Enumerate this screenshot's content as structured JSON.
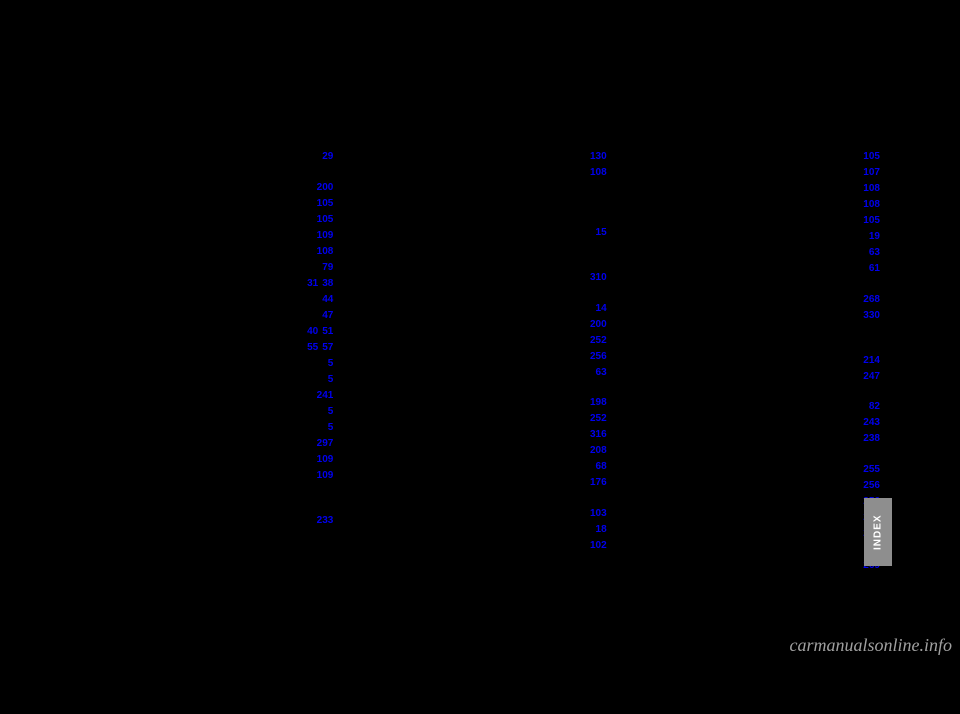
{
  "watermark": "carmanualsonline.info",
  "index_tab": "INDEX",
  "columns": [
    {
      "entries": [
        {
          "label": "",
          "pages": [
            "29"
          ]
        },
        {
          "label": "",
          "pages": []
        },
        {
          "label": "",
          "pages": [
            "200"
          ]
        },
        {
          "label": "",
          "pages": [
            "105"
          ]
        },
        {
          "label": "",
          "pages": [
            "105"
          ]
        },
        {
          "label": "",
          "pages": [
            "109"
          ]
        },
        {
          "label": "",
          "pages": [
            "108"
          ]
        },
        {
          "label": "",
          "pages": [
            "79"
          ]
        },
        {
          "label": "",
          "pages": [
            "31",
            "38"
          ]
        },
        {
          "label": "",
          "pages": [
            "44"
          ]
        },
        {
          "label": "",
          "pages": [
            "47"
          ]
        },
        {
          "label": "",
          "pages": [
            "40",
            "51"
          ]
        },
        {
          "label": "",
          "pages": [
            "55",
            "57"
          ]
        },
        {
          "label": "",
          "pages": [
            "5"
          ]
        },
        {
          "label": "",
          "pages": [
            "5"
          ]
        },
        {
          "label": "",
          "pages": [
            "241"
          ]
        },
        {
          "label": "",
          "pages": [
            "5"
          ]
        },
        {
          "label": "",
          "pages": [
            "5"
          ]
        },
        {
          "label": "",
          "pages": [
            "297"
          ]
        },
        {
          "label": "",
          "pages": [
            "109"
          ]
        },
        {
          "label": "",
          "pages": [
            "109"
          ]
        },
        {
          "label": "",
          "pages": []
        },
        {
          "label": "",
          "pages": []
        },
        {
          "label": "",
          "pages": [
            "233"
          ]
        }
      ]
    },
    {
      "entries": [
        {
          "label": "",
          "pages": [
            "130"
          ]
        },
        {
          "label": "",
          "pages": [
            "108"
          ]
        },
        {
          "label": "",
          "pages": []
        },
        {
          "label": "",
          "pages": []
        },
        {
          "label": "",
          "pages": []
        },
        {
          "label": "",
          "pages": [
            "15"
          ]
        },
        {
          "label": "",
          "pages": []
        },
        {
          "label": "",
          "pages": []
        },
        {
          "label": "",
          "pages": [
            "310"
          ]
        },
        {
          "label": "",
          "pages": []
        },
        {
          "label": "",
          "pages": [
            "14"
          ]
        },
        {
          "label": "",
          "pages": [
            "200"
          ]
        },
        {
          "label": "",
          "pages": [
            "252"
          ]
        },
        {
          "label": "",
          "pages": [
            "256"
          ]
        },
        {
          "label": "",
          "pages": [
            "63"
          ]
        },
        {
          "label": "",
          "pages": []
        },
        {
          "label": "",
          "pages": [
            "198"
          ]
        },
        {
          "label": "",
          "pages": [
            "252"
          ]
        },
        {
          "label": "",
          "pages": [
            "316"
          ]
        },
        {
          "label": "",
          "pages": [
            "208"
          ]
        },
        {
          "label": "",
          "pages": [
            "68"
          ]
        },
        {
          "label": "",
          "pages": [
            "176"
          ]
        },
        {
          "label": "",
          "pages": []
        },
        {
          "label": "",
          "pages": [
            "103"
          ]
        },
        {
          "label": "",
          "pages": [
            "18"
          ]
        },
        {
          "label": "",
          "pages": [
            "102"
          ]
        }
      ]
    },
    {
      "entries": [
        {
          "label": "",
          "pages": [
            "105"
          ]
        },
        {
          "label": "",
          "pages": [
            "107"
          ]
        },
        {
          "label": "",
          "pages": [
            "108"
          ]
        },
        {
          "label": "",
          "pages": [
            "108"
          ]
        },
        {
          "label": "",
          "pages": [
            "105"
          ]
        },
        {
          "label": "",
          "pages": [
            "19"
          ]
        },
        {
          "label": "",
          "pages": [
            "63"
          ]
        },
        {
          "label": "",
          "pages": [
            "61"
          ]
        },
        {
          "label": "",
          "pages": []
        },
        {
          "label": "",
          "pages": [
            "268"
          ]
        },
        {
          "label": "",
          "pages": [
            "330"
          ]
        },
        {
          "label": "",
          "pages": []
        },
        {
          "label": "",
          "pages": []
        },
        {
          "label": "",
          "pages": [
            "214"
          ]
        },
        {
          "label": "",
          "pages": [
            "247"
          ]
        },
        {
          "label": "",
          "pages": []
        },
        {
          "label": "",
          "pages": [
            "82"
          ]
        },
        {
          "label": "",
          "pages": [
            "243"
          ]
        },
        {
          "label": "",
          "pages": [
            "238"
          ]
        },
        {
          "label": "",
          "pages": []
        },
        {
          "label": "",
          "pages": [
            "255"
          ]
        },
        {
          "label": "",
          "pages": [
            "256"
          ]
        },
        {
          "label": "",
          "pages": [
            "256"
          ]
        },
        {
          "label": "",
          "pages": [
            "256"
          ]
        },
        {
          "label": "",
          "pages": [
            "254"
          ]
        },
        {
          "label": "",
          "pages": [
            "13"
          ]
        },
        {
          "label": "",
          "pages": [
            "269"
          ]
        }
      ]
    }
  ]
}
